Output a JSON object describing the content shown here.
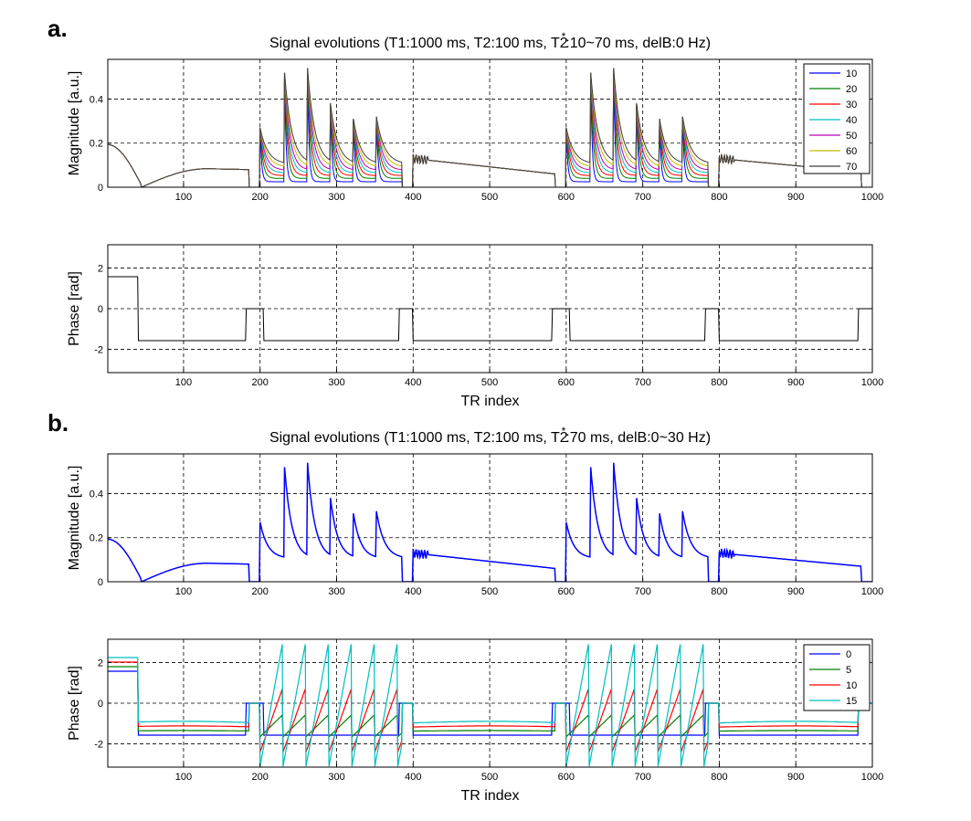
{
  "panels": {
    "a": "a.",
    "b": "b."
  },
  "chart_data": [
    {
      "id": "a1",
      "type": "line",
      "title": "Signal evolutions (T1:1000 ms, T2:100 ms, T2*:10~70 ms, delB:0 Hz)",
      "title_parts": {
        "before": "Signal evolutions (T1:1000 ms, T2:100 ms, T2",
        "star": "*",
        "after": ":10~70 ms, delB:0 Hz)"
      },
      "xlabel": "",
      "ylabel": "Magnitude [a.u.]",
      "xlim": [
        1,
        1000
      ],
      "ylim": [
        0,
        0.58
      ],
      "xticks": [
        100,
        200,
        300,
        400,
        500,
        600,
        700,
        800,
        900,
        1000
      ],
      "yticks": [
        0,
        0.2,
        0.4
      ],
      "ytick_labels": [
        "0",
        "0.2",
        "0.4"
      ],
      "legend": {
        "position": "top-right",
        "entries": [
          "10",
          "20",
          "30",
          "40",
          "50",
          "60",
          "70"
        ]
      },
      "series": [
        {
          "name": "10",
          "color": "#0000ff",
          "scale": 0.2
        },
        {
          "name": "20",
          "color": "#008000",
          "scale": 0.35
        },
        {
          "name": "30",
          "color": "#ff0000",
          "scale": 0.48
        },
        {
          "name": "40",
          "color": "#00bfbf",
          "scale": 0.6
        },
        {
          "name": "50",
          "color": "#bf00bf",
          "scale": 0.72
        },
        {
          "name": "60",
          "color": "#bfbf00",
          "scale": 0.86
        },
        {
          "name": "70",
          "color": "#3f3f3f",
          "scale": 1.0
        }
      ]
    },
    {
      "id": "a2",
      "type": "line",
      "title": "",
      "xlabel": "TR index",
      "ylabel": "Phase [rad]",
      "xlim": [
        1,
        1000
      ],
      "ylim": [
        -3.14,
        3.14
      ],
      "xticks": [
        100,
        200,
        300,
        400,
        500,
        600,
        700,
        800,
        900,
        1000
      ],
      "yticks": [
        -2,
        0,
        2
      ],
      "ytick_labels": [
        "-2",
        "0",
        "2"
      ],
      "series": [
        {
          "name": "phase",
          "color": "#000000"
        }
      ]
    },
    {
      "id": "b1",
      "type": "line",
      "title": "Signal evolutions (T1:1000 ms, T2:100 ms, T2*:70 ms, delB:0~30 Hz)",
      "title_parts": {
        "before": "Signal evolutions (T1:1000 ms, T2:100 ms, T2",
        "star": "*",
        "after": ":70 ms, delB:0~30 Hz)"
      },
      "xlabel": "",
      "ylabel": "Magnitude [a.u.]",
      "xlim": [
        1,
        1000
      ],
      "ylim": [
        0,
        0.58
      ],
      "xticks": [
        100,
        200,
        300,
        400,
        500,
        600,
        700,
        800,
        900,
        1000
      ],
      "yticks": [
        0,
        0.2,
        0.4
      ],
      "ytick_labels": [
        "0",
        "0.2",
        "0.4"
      ],
      "series": [
        {
          "name": "magnitude",
          "color": "#0000ff"
        }
      ]
    },
    {
      "id": "b2",
      "type": "line",
      "title": "",
      "xlabel": "TR index",
      "ylabel": "Phase [rad]",
      "xlim": [
        1,
        1000
      ],
      "ylim": [
        -3.14,
        3.14
      ],
      "xticks": [
        100,
        200,
        300,
        400,
        500,
        600,
        700,
        800,
        900,
        1000
      ],
      "yticks": [
        -2,
        0,
        2
      ],
      "ytick_labels": [
        "-2",
        "0",
        "2"
      ],
      "legend": {
        "position": "top-right",
        "entries": [
          "0",
          "5",
          "10",
          "15"
        ]
      },
      "series": [
        {
          "name": "0",
          "color": "#0000ff",
          "freq": 0
        },
        {
          "name": "5",
          "color": "#008000",
          "freq": 5
        },
        {
          "name": "10",
          "color": "#ff0000",
          "freq": 10
        },
        {
          "name": "15",
          "color": "#00bfbf",
          "freq": 15
        }
      ]
    }
  ]
}
